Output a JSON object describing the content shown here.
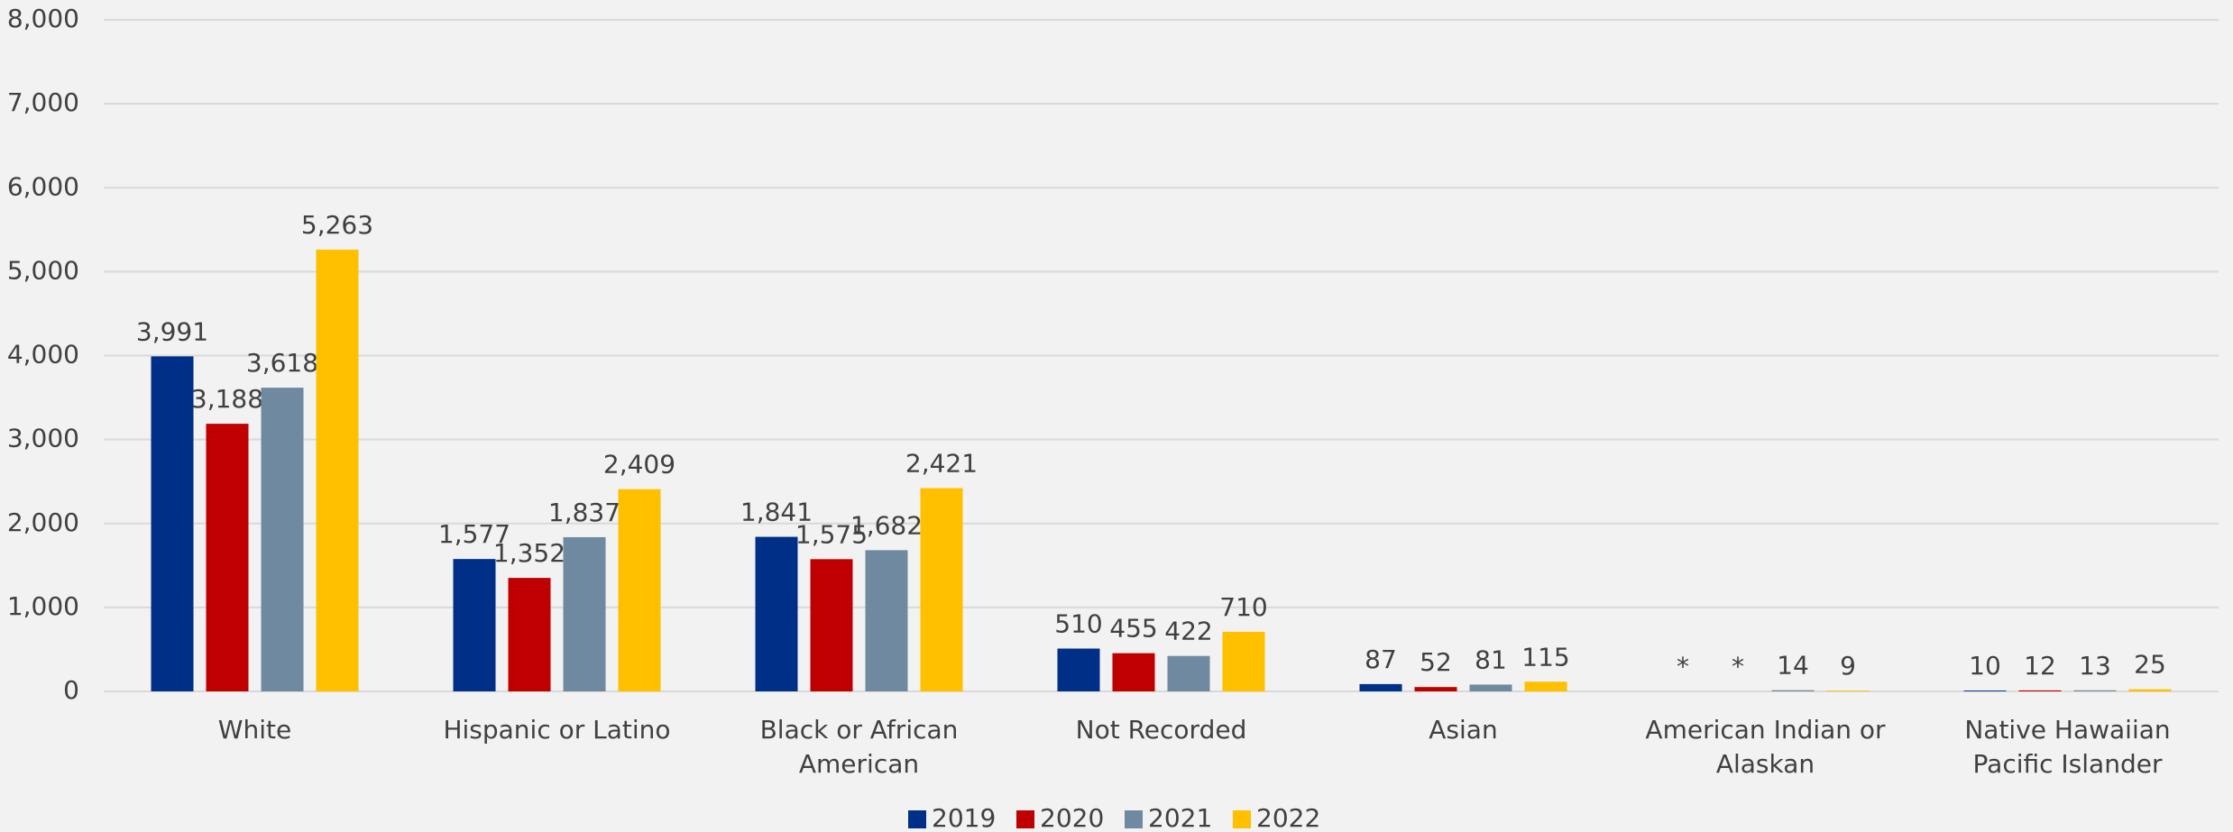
{
  "chart_data": {
    "type": "bar",
    "categories": [
      "White",
      "Hispanic or Latino",
      "Black or African American",
      "Not Recorded",
      "Asian",
      "American Indian or Alaskan",
      "Native Hawaiian Pacific Islander"
    ],
    "series": [
      {
        "name": "2019",
        "color": "#002f87",
        "values": [
          3991,
          1577,
          1841,
          510,
          87,
          null,
          10
        ],
        "value_labels": [
          "3,991",
          "1,577",
          "1,841",
          "510",
          "87",
          "*",
          "10"
        ]
      },
      {
        "name": "2020",
        "color": "#c00000",
        "values": [
          3188,
          1352,
          1575,
          455,
          52,
          null,
          12
        ],
        "value_labels": [
          "3,188",
          "1,352",
          "1,575",
          "455",
          "52",
          "*",
          "12"
        ]
      },
      {
        "name": "2021",
        "color": "#6f8aa0",
        "values": [
          3618,
          1837,
          1682,
          422,
          81,
          14,
          13
        ],
        "value_labels": [
          "3,618",
          "1,837",
          "1,682",
          "422",
          "81",
          "14",
          "13"
        ]
      },
      {
        "name": "2022",
        "color": "#ffc000",
        "values": [
          5263,
          2409,
          2421,
          710,
          115,
          9,
          25
        ],
        "value_labels": [
          "5,263",
          "2,409",
          "2,421",
          "710",
          "115",
          "9",
          "25"
        ]
      }
    ],
    "ylim": [
      0,
      8000
    ],
    "yticks": [
      0,
      {
        "value": 1000,
        "label": "1,000"
      },
      {
        "value": 2000,
        "label": "2,000"
      },
      {
        "value": 3000,
        "label": "3,000"
      },
      {
        "value": 4000,
        "label": "4,000"
      },
      {
        "value": 5000,
        "label": "5,000"
      },
      {
        "value": 6000,
        "label": "6,000"
      },
      {
        "value": 7000,
        "label": "7,000"
      },
      {
        "value": 8000,
        "label": "8,000"
      }
    ],
    "grid": true,
    "legend": "bottom"
  }
}
